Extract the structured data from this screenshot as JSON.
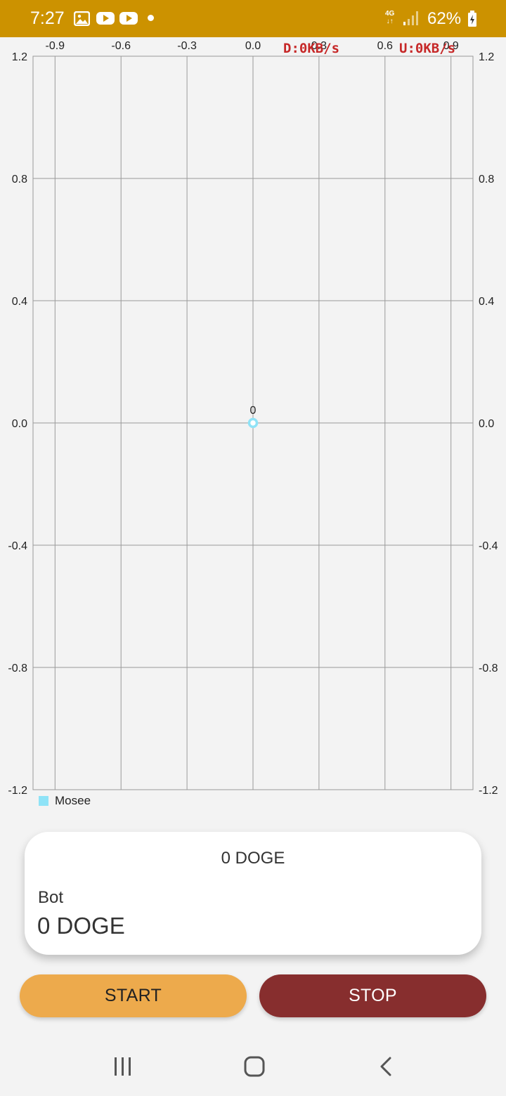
{
  "status_bar": {
    "time": "7:27",
    "network_type": "4G",
    "battery_percent": "62%",
    "icons": [
      "gallery-icon",
      "youtube-icon",
      "youtube-icon",
      "notification-dot-icon",
      "signal-icon",
      "battery-charging-icon"
    ],
    "background_color": "#cc9200"
  },
  "net_overlay": {
    "download": "D:0KB/s",
    "upload": "U:0KB/s"
  },
  "chart_data": {
    "type": "scatter",
    "x_ticks": [
      "-0.9",
      "-0.6",
      "-0.3",
      "0.0",
      "0.3",
      "0.6",
      "0.9"
    ],
    "y_ticks": [
      "1.2",
      "0.8",
      "0.4",
      "0.0",
      "-0.4",
      "-0.8",
      "-1.2"
    ],
    "xlim": [
      -1.0,
      1.0
    ],
    "ylim": [
      -1.2,
      1.2
    ],
    "grid": true,
    "series": [
      {
        "name": "Mosee",
        "color": "#8fe3f7",
        "points": [
          {
            "x": 0,
            "y": 0,
            "label": "0"
          }
        ]
      }
    ],
    "legend": "bottom-left"
  },
  "card": {
    "total": "0 DOGE",
    "bot_label": "Bot",
    "bot_value": "0 DOGE"
  },
  "buttons": {
    "start": "START",
    "stop": "STOP",
    "start_color": "#edaa4c",
    "stop_color": "#872e2e"
  },
  "nav": {
    "icons": [
      "recents-icon",
      "home-icon",
      "back-icon"
    ]
  }
}
